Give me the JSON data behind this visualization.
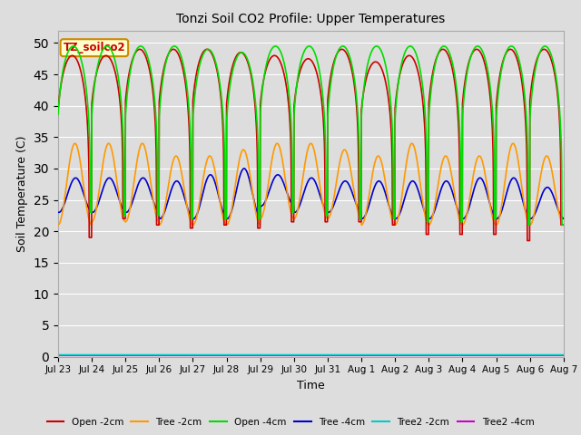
{
  "title": "Tonzi Soil CO2 Profile: Upper Temperatures",
  "xlabel": "Time",
  "ylabel": "Soil Temperature (C)",
  "ylim": [
    0,
    52
  ],
  "yticks": [
    0,
    5,
    10,
    15,
    20,
    25,
    30,
    35,
    40,
    45,
    50
  ],
  "background_color": "#dddddd",
  "plot_bg_color": "#dddddd",
  "grid_color": "#ffffff",
  "series": {
    "Open -2cm": {
      "color": "#cc0000",
      "lw": 1.2
    },
    "Tree -2cm": {
      "color": "#ff9900",
      "lw": 1.2
    },
    "Open -4cm": {
      "color": "#00dd00",
      "lw": 1.2
    },
    "Tree -4cm": {
      "color": "#0000cc",
      "lw": 1.2
    },
    "Tree2 -2cm": {
      "color": "#00cccc",
      "lw": 1.2
    },
    "Tree2 -4cm": {
      "color": "#cc00cc",
      "lw": 1.2
    }
  },
  "label_box": {
    "text": "TZ_soilco2",
    "facecolor": "#ffffcc",
    "edgecolor": "#cc8800",
    "textcolor": "#cc0000"
  },
  "tick_labels": [
    "Jul 23",
    "Jul 24",
    "Jul 25",
    "Jul 26",
    "Jul 27",
    "Jul 28",
    "Jul 29",
    "Jul 30",
    "Jul 31",
    "Aug 1",
    "Aug 2",
    "Aug 3",
    "Aug 4",
    "Aug 5",
    "Aug 6",
    "Aug 7"
  ],
  "n_days": 15,
  "open2_mins": [
    19,
    22,
    21,
    20.5,
    21,
    20.5,
    21.5,
    21.5,
    21.5,
    21,
    19.5,
    19.5,
    19.5,
    18.5,
    21
  ],
  "open2_maxs": [
    48,
    48,
    49,
    49,
    49,
    48.5,
    48,
    47.5,
    49,
    47,
    48,
    49,
    49,
    49,
    49
  ],
  "tree2cm_mins": [
    21,
    21.5,
    21.5,
    21,
    21,
    21,
    22,
    22,
    22,
    21,
    21,
    21,
    21,
    21,
    21
  ],
  "tree2cm_maxs": [
    34,
    34,
    34,
    32,
    32,
    33,
    34,
    34,
    33,
    32,
    34,
    32,
    32,
    34,
    32
  ],
  "open4_mins": [
    23,
    22.5,
    22.5,
    22,
    22,
    22,
    23,
    22.5,
    22,
    22,
    21.5,
    21.5,
    22,
    21,
    21
  ],
  "open4_maxs": [
    49.5,
    49.5,
    49.5,
    49.5,
    49,
    48.5,
    49.5,
    49.5,
    49.5,
    49.5,
    49.5,
    49.5,
    49.5,
    49.5,
    49.5
  ],
  "tree4cm_mins": [
    23,
    23,
    23,
    22,
    22,
    22,
    24,
    23,
    23,
    22,
    22,
    22,
    22,
    22,
    22
  ],
  "tree4cm_maxs": [
    28.5,
    28.5,
    28.5,
    28,
    29,
    30,
    29,
    28.5,
    28,
    28,
    28,
    28,
    28.5,
    28.5,
    27
  ],
  "tree2_2cm_val": 0.3,
  "tree2_4cm_val": 0.2,
  "pts_per_day": 144
}
